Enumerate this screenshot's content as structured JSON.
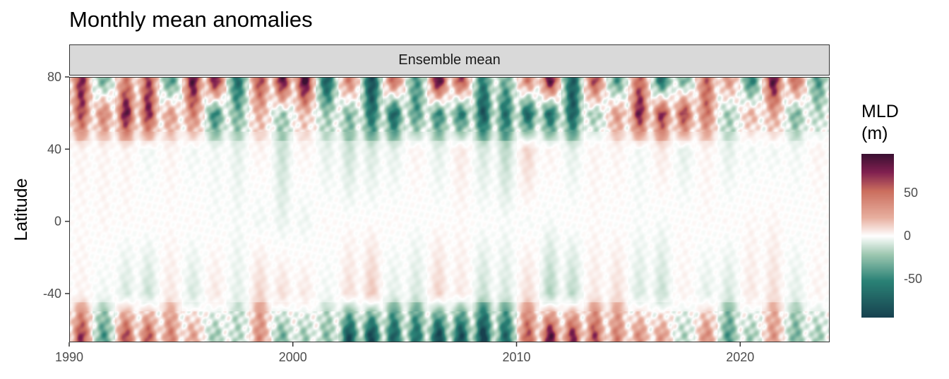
{
  "title": "Monthly mean anomalies",
  "facet_label": "Ensemble mean",
  "ylabel": "Latitude",
  "legend": {
    "title_line1": "MLD",
    "title_line2": "(m)",
    "ticks": [
      {
        "value": 50,
        "label": "50"
      },
      {
        "value": 0,
        "label": "0"
      },
      {
        "value": -50,
        "label": "-50"
      }
    ]
  },
  "chart_data": {
    "type": "heatmap",
    "title": "Monthly mean anomalies",
    "facet": "Ensemble mean",
    "xlabel": "",
    "ylabel": "Latitude",
    "xlim": [
      1990,
      2024
    ],
    "ylim": [
      -67,
      80
    ],
    "xticks": [
      1990,
      2000,
      2010,
      2020
    ],
    "xtick_labels": [
      "1990",
      "2000",
      "2010",
      "2020"
    ],
    "yticks": [
      -40,
      0,
      40,
      80
    ],
    "ytick_labels": [
      "-40",
      "0",
      "40",
      "80"
    ],
    "colorbar": {
      "label": "MLD (m)",
      "range": [
        -95,
        95
      ],
      "ticks": [
        -50,
        0,
        50
      ],
      "colors": {
        "low": "#17414f",
        "mid_low": "#2a8276",
        "near_zero": "#ffffff",
        "mid_high": "#cb6e5e",
        "high": "#3b1032"
      }
    },
    "grid": false,
    "legend_position": "right",
    "latitudes": [
      78,
      60,
      40,
      0,
      -40,
      -63
    ],
    "annual_anomaly_by_latitude_band": {
      "years": [
        1990,
        1991,
        1992,
        1993,
        1994,
        1995,
        1996,
        1997,
        1998,
        1999,
        2000,
        2001,
        2002,
        2003,
        2004,
        2005,
        2006,
        2007,
        2008,
        2009,
        2010,
        2011,
        2012,
        2013,
        2014,
        2015,
        2016,
        2017,
        2018,
        2019,
        2020,
        2021,
        2022,
        2023
      ],
      "lat_78": [
        70,
        -30,
        40,
        60,
        -40,
        80,
        75,
        -60,
        60,
        80,
        90,
        -70,
        40,
        -80,
        50,
        -40,
        85,
        60,
        -50,
        -30,
        40,
        80,
        -70,
        60,
        -40,
        50,
        -60,
        -30,
        50,
        30,
        -50,
        80,
        50,
        -40
      ],
      "lat_60": [
        60,
        40,
        80,
        70,
        30,
        40,
        -50,
        -30,
        20,
        -20,
        15,
        -20,
        -30,
        -60,
        -70,
        -40,
        -50,
        -55,
        -75,
        -60,
        -70,
        -65,
        -70,
        -20,
        30,
        75,
        70,
        65,
        45,
        -20,
        20,
        25,
        -30,
        -15
      ],
      "lat_40": [
        5,
        5,
        5,
        -5,
        5,
        -5,
        -5,
        -10,
        5,
        -20,
        5,
        -10,
        -20,
        -15,
        -10,
        5,
        -10,
        10,
        -15,
        -25,
        20,
        5,
        -10,
        5,
        5,
        -5,
        10,
        -10,
        5,
        -10,
        -5,
        -5,
        -5,
        5
      ],
      "lat_0": [
        2,
        3,
        2,
        2,
        1,
        2,
        -2,
        -3,
        -5,
        -8,
        -6,
        2,
        1,
        1,
        2,
        -1,
        1,
        2,
        0,
        -2,
        -3,
        -3,
        1,
        2,
        0,
        -2,
        -3,
        1,
        2,
        2,
        3,
        4,
        1,
        0
      ],
      "lat_m40": [
        5,
        -5,
        -15,
        -20,
        10,
        -15,
        10,
        -10,
        20,
        15,
        10,
        -5,
        15,
        25,
        -10,
        -15,
        20,
        10,
        -20,
        -15,
        15,
        -30,
        -25,
        10,
        15,
        -15,
        -20,
        5,
        -10,
        -15,
        10,
        15,
        -10,
        5
      ],
      "lat_m63": [
        65,
        -40,
        60,
        55,
        40,
        25,
        -20,
        -15,
        35,
        -30,
        -20,
        -25,
        -80,
        -85,
        -70,
        -60,
        -85,
        -80,
        -90,
        -65,
        55,
        80,
        70,
        60,
        40,
        35,
        30,
        -15,
        35,
        -40,
        -20,
        30,
        -30,
        -20
      ]
    }
  }
}
